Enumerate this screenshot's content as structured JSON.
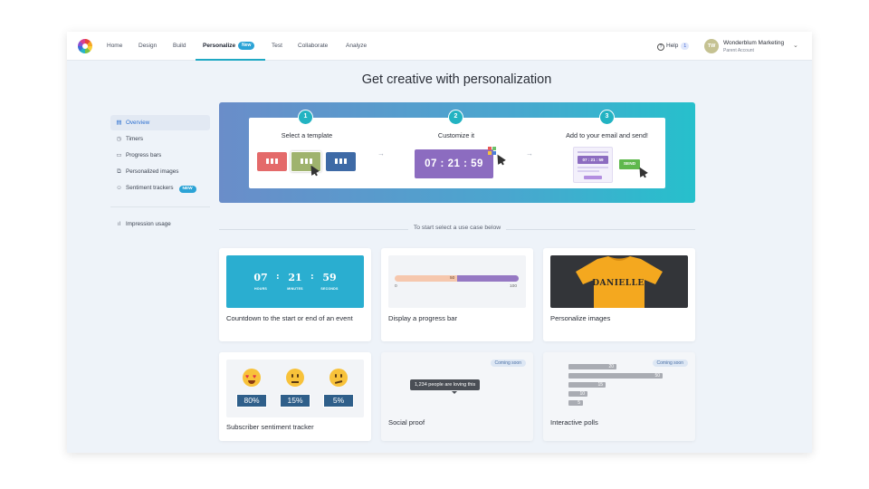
{
  "nav": {
    "items": [
      "Home",
      "Design",
      "Build",
      "Personalize",
      "Test",
      "Collaborate",
      "Analyze"
    ],
    "active": "Personalize",
    "personalize_badge": "New",
    "help_label": "Help",
    "help_icon_glyph": "?",
    "help_count": "1",
    "account_initials": "TW",
    "account_name": "Wonderblum Marketing",
    "account_sub": "Parent Account"
  },
  "page_title": "Get creative with personalization",
  "sidebar": {
    "items": [
      {
        "label": "Overview",
        "icon": "document-icon",
        "active": true
      },
      {
        "label": "Timers",
        "icon": "clock-icon"
      },
      {
        "label": "Progress bars",
        "icon": "progress-icon"
      },
      {
        "label": "Personalized images",
        "icon": "images-icon"
      },
      {
        "label": "Sentiment trackers",
        "icon": "smiley-icon",
        "badge": "NEW"
      }
    ],
    "footer_item": {
      "label": "Impression usage",
      "icon": "bar-chart-icon"
    }
  },
  "hero": {
    "steps": [
      {
        "num": "1",
        "label": "Select a template"
      },
      {
        "num": "2",
        "label": "Customize it"
      },
      {
        "num": "3",
        "label": "Add to your email and send!"
      }
    ],
    "timer": {
      "hours": "07",
      "minutes": "21",
      "seconds": "59"
    },
    "mini_timer": "07 : 21 : 59",
    "send_label": "SEND"
  },
  "section_label": "To start select a use case below",
  "cards": {
    "countdown": {
      "label": "Countdown to the start or end of an event",
      "hours": "07",
      "minutes": "21",
      "seconds": "59",
      "hours_unit": "HOURS",
      "minutes_unit": "MINUTES",
      "seconds_unit": "SECONDS"
    },
    "progress": {
      "label": "Display a progress bar",
      "value": "50",
      "min": "0",
      "max": "100"
    },
    "images": {
      "label": "Personalize images",
      "shirt_text": "DANIELLE"
    },
    "sentiment": {
      "label": "Subscriber sentiment tracker",
      "values": [
        "80%",
        "15%",
        "5%"
      ]
    },
    "social": {
      "label": "Social proof",
      "badge": "Coming soon",
      "pill": "1,234 people are loving this"
    },
    "polls": {
      "label": "Interactive polls",
      "badge": "Coming soon",
      "values": [
        "20",
        "50",
        "15",
        "10",
        "5"
      ]
    }
  },
  "colors": {
    "accent": "#1fa9c4",
    "hero_start": "#6a8dc9",
    "hero_end": "#26c0cc",
    "active_link": "#2c6fd0"
  }
}
